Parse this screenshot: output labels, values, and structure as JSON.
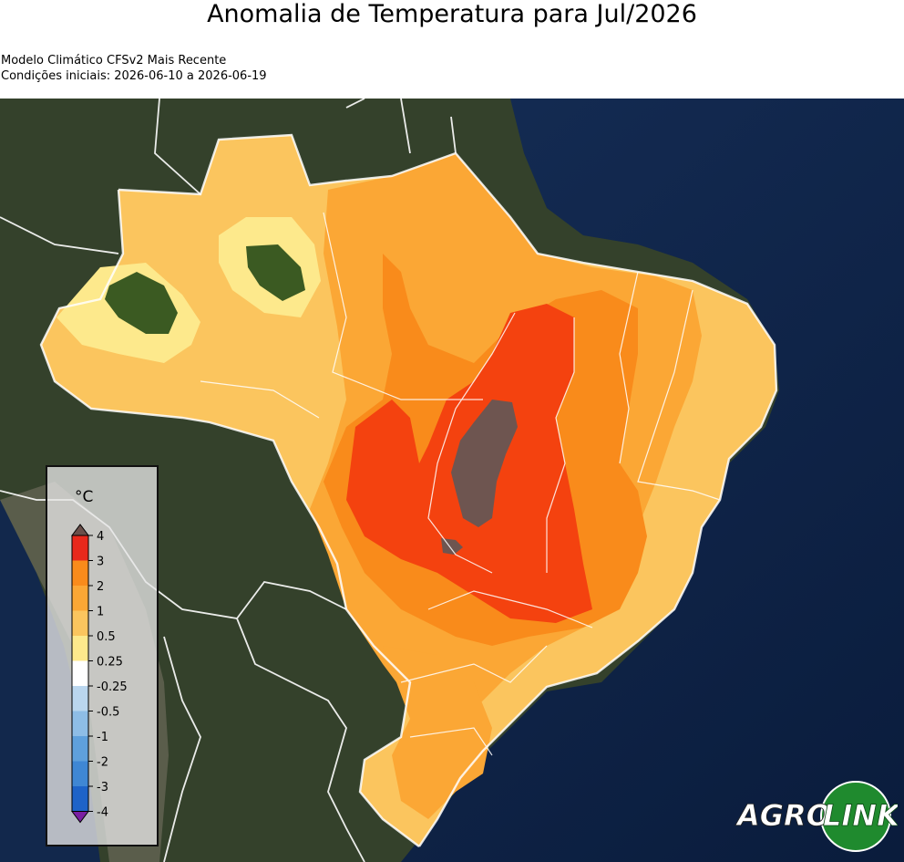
{
  "title": "Anomalia de Temperatura para Jul/2026",
  "subtitle_model": "Modelo Climático CFSv2 Mais Recente",
  "subtitle_conditions": "Condições iniciais: 2026-06-10 a 2026-06-19",
  "colorbar": {
    "unit": "°C",
    "levels": [
      {
        "label": "4",
        "color": "#e8291c"
      },
      {
        "label": "3",
        "color": "#f98b1b"
      },
      {
        "label": "2",
        "color": "#fba735"
      },
      {
        "label": "1",
        "color": "#fbc55e"
      },
      {
        "label": "0.5",
        "color": "#fde98c"
      },
      {
        "label": "0.25",
        "color": "#ffffff"
      },
      {
        "label": "-0.25",
        "color": "#bad6ee"
      },
      {
        "label": "-0.5",
        "color": "#8ebde6"
      },
      {
        "label": "-1",
        "color": "#5fa0dc"
      },
      {
        "label": "-2",
        "color": "#3f87d4"
      },
      {
        "label": "-3",
        "color": "#1e63c8"
      },
      {
        "label": "-4",
        "color": "#0b3fb5"
      }
    ],
    "over_color": "#6b4f4a",
    "under_color": "#7a1fa2"
  },
  "map_colors": {
    "ocean": "#0f2548",
    "land": "#33402a",
    "anom_025_05": "#fde98c",
    "anom_05_1": "#fbc55e",
    "anom_1_2": "#fba735",
    "anom_2_3": "#f98b1b",
    "anom_3_4": "#f4420f",
    "anom_gt_4": "#6e5550",
    "neutral_green": "#3b5a22"
  },
  "logo": {
    "text_left": "AGRO",
    "text_right": "LINK"
  }
}
